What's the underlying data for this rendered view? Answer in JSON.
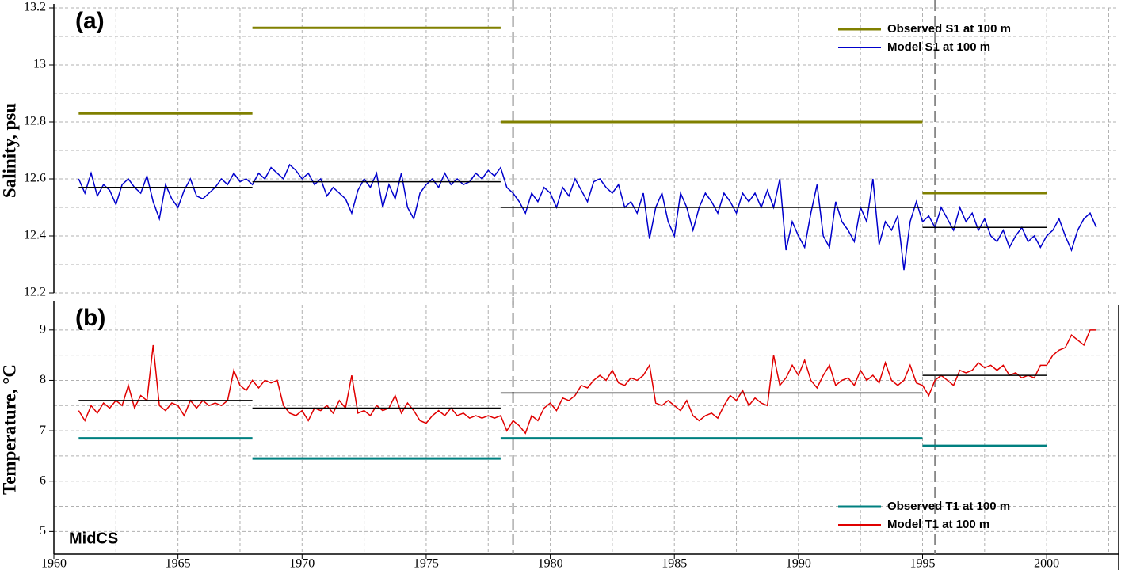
{
  "chart_data": [
    {
      "type": "line",
      "label": "(a)",
      "y_label": "Salinity, psu",
      "legend": "upper right",
      "xlim": [
        1960,
        2002.9
      ],
      "xticks": [
        1960,
        1965,
        1970,
        1975,
        1980,
        1985,
        1990,
        1995,
        2000
      ],
      "minor_xticks": [
        1962.5,
        1967.5,
        1972.5,
        1977.5,
        1982.5,
        1987.5,
        1992.5,
        1997.5,
        2002.5
      ],
      "ylim": [
        12.2,
        13.2
      ],
      "yticks": [
        12.2,
        12.4,
        12.6,
        12.8,
        13,
        13.2
      ],
      "minor_yticks": [
        12.3,
        12.5,
        12.7,
        12.9,
        13.1
      ],
      "grid": true,
      "vlines": [
        1978.5,
        1995.5
      ],
      "x": [
        1961,
        1961.25,
        1961.5,
        1961.75,
        1962,
        1962.25,
        1962.5,
        1962.75,
        1963,
        1963.25,
        1963.5,
        1963.75,
        1964,
        1964.25,
        1964.5,
        1964.75,
        1965,
        1965.25,
        1965.5,
        1965.75,
        1966,
        1966.25,
        1966.5,
        1966.75,
        1967,
        1967.25,
        1967.5,
        1967.75,
        1968,
        1968.25,
        1968.5,
        1968.75,
        1969,
        1969.25,
        1969.5,
        1969.75,
        1970,
        1970.25,
        1970.5,
        1970.75,
        1971,
        1971.25,
        1971.5,
        1971.75,
        1972,
        1972.25,
        1972.5,
        1972.75,
        1973,
        1973.25,
        1973.5,
        1973.75,
        1974,
        1974.25,
        1974.5,
        1974.75,
        1975,
        1975.25,
        1975.5,
        1975.75,
        1976,
        1976.25,
        1976.5,
        1976.75,
        1977,
        1977.25,
        1977.5,
        1977.75,
        1978,
        1978.25,
        1978.5,
        1978.75,
        1979,
        1979.25,
        1979.5,
        1979.75,
        1980,
        1980.25,
        1980.5,
        1980.75,
        1981,
        1981.25,
        1981.5,
        1981.75,
        1982,
        1982.25,
        1982.5,
        1982.75,
        1983,
        1983.25,
        1983.5,
        1983.75,
        1984,
        1984.25,
        1984.5,
        1984.75,
        1985,
        1985.25,
        1985.5,
        1985.75,
        1986,
        1986.25,
        1986.5,
        1986.75,
        1987,
        1987.25,
        1987.5,
        1987.75,
        1988,
        1988.25,
        1988.5,
        1988.75,
        1989,
        1989.25,
        1989.5,
        1989.75,
        1990,
        1990.25,
        1990.5,
        1990.75,
        1991,
        1991.25,
        1991.5,
        1991.75,
        1992,
        1992.25,
        1992.5,
        1992.75,
        1993,
        1993.25,
        1993.5,
        1993.75,
        1994,
        1994.25,
        1994.5,
        1994.75,
        1995,
        1995.25,
        1995.5,
        1995.75,
        1996,
        1996.25,
        1996.5,
        1996.75,
        1997,
        1997.25,
        1997.5,
        1997.75,
        1998,
        1998.25,
        1998.5,
        1998.75,
        1999,
        1999.25,
        1999.5,
        1999.75,
        2000,
        2000.25,
        2000.5,
        2000.75,
        2001,
        2001.25,
        2001.5,
        2001.75,
        2002
      ],
      "series": [
        {
          "name": "Observed S1 at 100 m",
          "color": "#808000",
          "segments": [
            {
              "x": [
                1961,
                1968
              ],
              "value": 12.83
            },
            {
              "x": [
                1968,
                1978
              ],
              "value": 13.13
            },
            {
              "x": [
                1978,
                1995
              ],
              "value": 12.8
            },
            {
              "x": [
                1995,
                2000
              ],
              "value": 12.55
            }
          ]
        },
        {
          "name": "Model S1 at 100 m",
          "color": "#0000cc",
          "values": [
            12.6,
            12.55,
            12.62,
            12.54,
            12.58,
            12.56,
            12.51,
            12.58,
            12.6,
            12.57,
            12.55,
            12.61,
            12.52,
            12.46,
            12.58,
            12.53,
            12.5,
            12.56,
            12.6,
            12.54,
            12.53,
            12.55,
            12.57,
            12.6,
            12.58,
            12.62,
            12.59,
            12.6,
            12.58,
            12.62,
            12.6,
            12.64,
            12.62,
            12.6,
            12.65,
            12.63,
            12.6,
            12.62,
            12.58,
            12.6,
            12.54,
            12.57,
            12.55,
            12.53,
            12.48,
            12.56,
            12.6,
            12.57,
            12.62,
            12.5,
            12.58,
            12.53,
            12.62,
            12.5,
            12.46,
            12.55,
            12.58,
            12.6,
            12.57,
            12.62,
            12.58,
            12.6,
            12.58,
            12.59,
            12.62,
            12.6,
            12.63,
            12.61,
            12.64,
            12.57,
            12.55,
            12.52,
            12.48,
            12.55,
            12.52,
            12.57,
            12.55,
            12.5,
            12.57,
            12.54,
            12.6,
            12.56,
            12.52,
            12.59,
            12.6,
            12.57,
            12.55,
            12.58,
            12.5,
            12.52,
            12.48,
            12.55,
            12.39,
            12.5,
            12.55,
            12.45,
            12.4,
            12.55,
            12.5,
            12.42,
            12.5,
            12.55,
            12.52,
            12.48,
            12.55,
            12.52,
            12.48,
            12.55,
            12.52,
            12.55,
            12.5,
            12.56,
            12.5,
            12.6,
            12.35,
            12.45,
            12.4,
            12.36,
            12.48,
            12.58,
            12.4,
            12.36,
            12.52,
            12.45,
            12.42,
            12.38,
            12.5,
            12.45,
            12.6,
            12.37,
            12.45,
            12.42,
            12.47,
            12.28,
            12.45,
            12.52,
            12.45,
            12.47,
            12.43,
            12.5,
            12.46,
            12.42,
            12.5,
            12.45,
            12.48,
            12.42,
            12.46,
            12.4,
            12.38,
            12.42,
            12.36,
            12.4,
            12.43,
            12.38,
            12.4,
            12.36,
            12.4,
            12.42,
            12.46,
            12.4,
            12.35,
            12.42,
            12.46,
            12.48,
            12.43
          ]
        },
        {
          "color": "#000000",
          "segments": [
            {
              "x": [
                1961,
                1968
              ],
              "value": 12.57
            },
            {
              "x": [
                1968,
                1978
              ],
              "value": 12.59
            },
            {
              "x": [
                1978,
                1995
              ],
              "value": 12.5
            },
            {
              "x": [
                1995,
                2000
              ],
              "value": 12.43
            }
          ]
        }
      ]
    },
    {
      "type": "line",
      "label": "(b)",
      "y_label": "Temperature, °C",
      "annotation": "MidCS",
      "legend": "lower right",
      "xlim": [
        1960,
        2002.9
      ],
      "xticks": [
        1960,
        1965,
        1970,
        1975,
        1980,
        1985,
        1990,
        1995,
        2000
      ],
      "minor_xticks": [
        1962.5,
        1967.5,
        1972.5,
        1977.5,
        1982.5,
        1987.5,
        1992.5,
        1997.5,
        2002.5
      ],
      "ylim": [
        4.55,
        9.5
      ],
      "yticks": [
        5,
        6,
        7,
        8,
        9
      ],
      "minor_yticks": [
        5.5,
        6.5,
        7.5,
        8.5
      ],
      "grid": true,
      "vlines": [
        1978.5,
        1995.5
      ],
      "x": [
        1961,
        1961.25,
        1961.5,
        1961.75,
        1962,
        1962.25,
        1962.5,
        1962.75,
        1963,
        1963.25,
        1963.5,
        1963.75,
        1964,
        1964.25,
        1964.5,
        1964.75,
        1965,
        1965.25,
        1965.5,
        1965.75,
        1966,
        1966.25,
        1966.5,
        1966.75,
        1967,
        1967.25,
        1967.5,
        1967.75,
        1968,
        1968.25,
        1968.5,
        1968.75,
        1969,
        1969.25,
        1969.5,
        1969.75,
        1970,
        1970.25,
        1970.5,
        1970.75,
        1971,
        1971.25,
        1971.5,
        1971.75,
        1972,
        1972.25,
        1972.5,
        1972.75,
        1973,
        1973.25,
        1973.5,
        1973.75,
        1974,
        1974.25,
        1974.5,
        1974.75,
        1975,
        1975.25,
        1975.5,
        1975.75,
        1976,
        1976.25,
        1976.5,
        1976.75,
        1977,
        1977.25,
        1977.5,
        1977.75,
        1978,
        1978.25,
        1978.5,
        1978.75,
        1979,
        1979.25,
        1979.5,
        1979.75,
        1980,
        1980.25,
        1980.5,
        1980.75,
        1981,
        1981.25,
        1981.5,
        1981.75,
        1982,
        1982.25,
        1982.5,
        1982.75,
        1983,
        1983.25,
        1983.5,
        1983.75,
        1984,
        1984.25,
        1984.5,
        1984.75,
        1985,
        1985.25,
        1985.5,
        1985.75,
        1986,
        1986.25,
        1986.5,
        1986.75,
        1987,
        1987.25,
        1987.5,
        1987.75,
        1988,
        1988.25,
        1988.5,
        1988.75,
        1989,
        1989.25,
        1989.5,
        1989.75,
        1990,
        1990.25,
        1990.5,
        1990.75,
        1991,
        1991.25,
        1991.5,
        1991.75,
        1992,
        1992.25,
        1992.5,
        1992.75,
        1993,
        1993.25,
        1993.5,
        1993.75,
        1994,
        1994.25,
        1994.5,
        1994.75,
        1995,
        1995.25,
        1995.5,
        1995.75,
        1996,
        1996.25,
        1996.5,
        1996.75,
        1997,
        1997.25,
        1997.5,
        1997.75,
        1998,
        1998.25,
        1998.5,
        1998.75,
        1999,
        1999.25,
        1999.5,
        1999.75,
        2000,
        2000.25,
        2000.5,
        2000.75,
        2001,
        2001.25,
        2001.5,
        2001.75,
        2002
      ],
      "series": [
        {
          "name": "Observed T1 at 100 m",
          "color": "#008080",
          "segments": [
            {
              "x": [
                1961,
                1968
              ],
              "value": 6.85
            },
            {
              "x": [
                1968,
                1978
              ],
              "value": 6.45
            },
            {
              "x": [
                1978,
                1995
              ],
              "value": 6.85
            },
            {
              "x": [
                1995,
                2000
              ],
              "value": 6.7
            }
          ]
        },
        {
          "name": "Model T1 at 100 m",
          "color": "#e00000",
          "values": [
            7.4,
            7.2,
            7.5,
            7.35,
            7.55,
            7.45,
            7.6,
            7.5,
            7.9,
            7.45,
            7.7,
            7.6,
            8.7,
            7.5,
            7.4,
            7.55,
            7.5,
            7.3,
            7.6,
            7.45,
            7.6,
            7.5,
            7.55,
            7.5,
            7.6,
            8.2,
            7.9,
            7.8,
            8.0,
            7.85,
            8.0,
            7.95,
            8.0,
            7.5,
            7.35,
            7.3,
            7.4,
            7.2,
            7.45,
            7.4,
            7.5,
            7.35,
            7.6,
            7.45,
            8.1,
            7.35,
            7.4,
            7.3,
            7.5,
            7.4,
            7.45,
            7.7,
            7.35,
            7.55,
            7.4,
            7.2,
            7.15,
            7.3,
            7.4,
            7.3,
            7.45,
            7.3,
            7.35,
            7.25,
            7.3,
            7.25,
            7.3,
            7.25,
            7.3,
            7.0,
            7.2,
            7.1,
            6.95,
            7.3,
            7.2,
            7.45,
            7.55,
            7.4,
            7.65,
            7.6,
            7.7,
            7.9,
            7.85,
            8.0,
            8.1,
            8.0,
            8.2,
            7.95,
            7.9,
            8.05,
            8.0,
            8.1,
            8.3,
            7.55,
            7.5,
            7.6,
            7.5,
            7.4,
            7.6,
            7.3,
            7.2,
            7.3,
            7.35,
            7.25,
            7.5,
            7.7,
            7.6,
            7.8,
            7.5,
            7.65,
            7.55,
            7.5,
            8.5,
            7.9,
            8.05,
            8.3,
            8.1,
            8.4,
            8.0,
            7.85,
            8.1,
            8.3,
            7.9,
            8.0,
            8.05,
            7.9,
            8.2,
            8.0,
            8.1,
            7.95,
            8.35,
            8.0,
            7.9,
            8.0,
            8.3,
            7.95,
            7.9,
            7.7,
            8.0,
            8.1,
            8.0,
            7.9,
            8.2,
            8.15,
            8.2,
            8.35,
            8.25,
            8.3,
            8.2,
            8.3,
            8.1,
            8.15,
            8.05,
            8.1,
            8.05,
            8.3,
            8.3,
            8.5,
            8.6,
            8.65,
            8.9,
            8.8,
            8.7,
            9.0,
            9.0
          ]
        },
        {
          "color": "#000000",
          "segments": [
            {
              "x": [
                1961,
                1968
              ],
              "value": 7.6
            },
            {
              "x": [
                1968,
                1978
              ],
              "value": 7.45
            },
            {
              "x": [
                1978,
                1995
              ],
              "value": 7.75
            },
            {
              "x": [
                1995,
                2000
              ],
              "value": 8.1
            }
          ]
        }
      ]
    }
  ]
}
